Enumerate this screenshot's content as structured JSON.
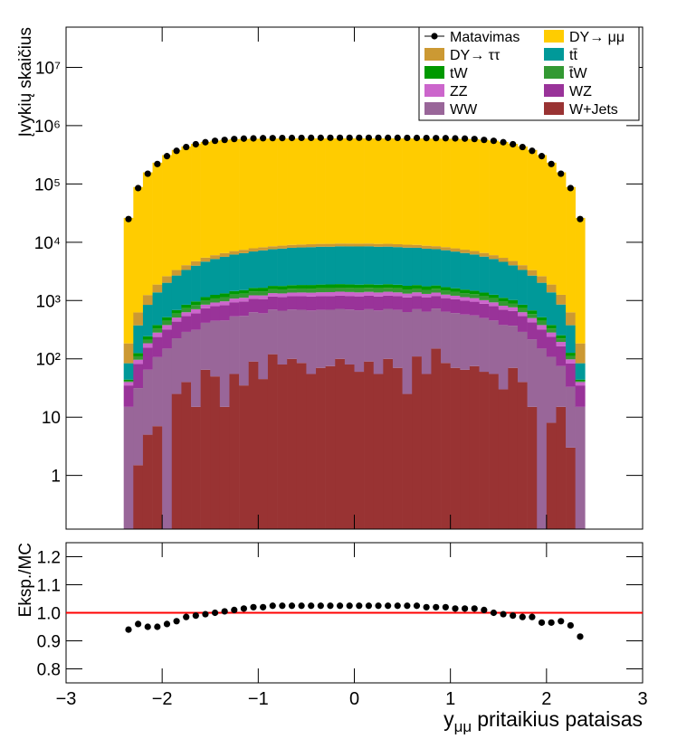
{
  "chart_data": [
    {
      "type": "stacked-histogram",
      "ylabel": "Įvykių skaičius",
      "log_scale": true,
      "legend_position": "top-right",
      "xlim": [
        -3,
        3
      ],
      "ylim": [
        0.12,
        49000000
      ],
      "yticks": [
        1,
        10,
        {
          "value": 100,
          "label": "10²"
        },
        {
          "value": 1000,
          "label": "10³"
        },
        {
          "value": 10000,
          "label": "10⁴"
        },
        {
          "value": 100000,
          "label": "10⁵"
        },
        {
          "value": 1000000,
          "label": "10⁶"
        },
        {
          "value": 10000000,
          "label": "10⁷"
        }
      ],
      "bins": [
        -2.4,
        -2.3,
        -2.2,
        -2.1,
        -2,
        -1.9,
        -1.8,
        -1.7,
        -1.6,
        -1.5,
        -1.4,
        -1.3,
        -1.2,
        -1.1,
        -1,
        -0.9,
        -0.8,
        -0.7,
        -0.6,
        -0.5,
        -0.4,
        -0.3,
        -0.2,
        -0.1,
        0,
        0.1,
        0.2,
        0.3,
        0.4,
        0.5,
        0.6,
        0.7,
        0.8,
        0.9,
        1,
        1.1,
        1.2,
        1.3,
        1.4,
        1.5,
        1.6,
        1.7,
        1.8,
        1.9,
        2,
        2.1,
        2.2,
        2.3,
        2.4
      ],
      "data": {
        "name": "Matavimas",
        "color": "#000000",
        "values": [
          25000,
          85000,
          150000,
          220000,
          300000,
          370000,
          430000,
          480000,
          520000,
          550000,
          570000,
          590000,
          600000,
          605000,
          610000,
          612000,
          614000,
          616000,
          617000,
          618000,
          619000,
          620000,
          620000,
          620000,
          620000,
          620000,
          620000,
          619000,
          618000,
          617000,
          616000,
          614000,
          612000,
          610000,
          605000,
          600000,
          590000,
          570000,
          550000,
          520000,
          480000,
          430000,
          370000,
          300000,
          220000,
          150000,
          85000,
          25000
        ]
      },
      "series": [
        {
          "name": "DY→ μμ",
          "color": "#ffcc00",
          "values": [
            26000,
            88000,
            157000,
            230000,
            310000,
            380000,
            435000,
            482000,
            520000,
            547000,
            563000,
            580000,
            585000,
            588000,
            590000,
            592000,
            593000,
            594000,
            595000,
            595000,
            596000,
            596000,
            596000,
            596000,
            596000,
            596000,
            596000,
            596000,
            595000,
            595000,
            594000,
            593000,
            592000,
            590000,
            588000,
            585000,
            580000,
            563000,
            547000,
            520000,
            482000,
            435000,
            380000,
            310000,
            230000,
            157000,
            88000,
            26000
          ]
        },
        {
          "name": "DY→ ττ",
          "color": "#cc9933",
          "values": [
            100,
            250,
            400,
            500,
            600,
            650,
            700,
            750,
            800,
            850,
            880,
            900,
            920,
            940,
            950,
            960,
            970,
            980,
            990,
            1000,
            1000,
            1000,
            1000,
            1000,
            1000,
            1000,
            1000,
            1000,
            1000,
            990,
            980,
            970,
            960,
            950,
            940,
            920,
            900,
            880,
            850,
            800,
            750,
            700,
            650,
            600,
            500,
            400,
            250,
            100
          ]
        },
        {
          "name": "tt̄",
          "color": "#009999",
          "values": [
            40,
            250,
            600,
            1000,
            1500,
            2000,
            2500,
            3000,
            3500,
            3900,
            4300,
            4700,
            5000,
            5300,
            5600,
            5800,
            6000,
            6200,
            6300,
            6400,
            6500,
            6500,
            6600,
            6600,
            6600,
            6600,
            6500,
            6500,
            6400,
            6300,
            6200,
            6000,
            5800,
            5600,
            5300,
            5000,
            4700,
            4300,
            3900,
            3500,
            3000,
            2500,
            2000,
            1500,
            1000,
            600,
            250,
            40
          ]
        },
        {
          "name": "tW",
          "color": "#009900",
          "values": [
            2,
            15,
            30,
            50,
            70,
            90,
            110,
            130,
            150,
            165,
            180,
            190,
            200,
            210,
            220,
            225,
            230,
            235,
            240,
            245,
            250,
            250,
            250,
            250,
            250,
            250,
            250,
            250,
            245,
            240,
            235,
            230,
            225,
            220,
            210,
            200,
            190,
            180,
            165,
            150,
            130,
            110,
            90,
            70,
            50,
            30,
            15,
            2
          ]
        },
        {
          "name": "t̄W",
          "color": "#339933",
          "values": [
            2,
            14,
            29,
            48,
            68,
            88,
            108,
            127,
            147,
            162,
            176,
            186,
            196,
            206,
            215,
            220,
            225,
            230,
            235,
            240,
            245,
            245,
            245,
            245,
            245,
            245,
            245,
            245,
            240,
            235,
            230,
            225,
            220,
            215,
            206,
            196,
            186,
            176,
            162,
            147,
            127,
            108,
            88,
            68,
            48,
            29,
            14,
            2
          ]
        },
        {
          "name": "ZZ",
          "color": "#cc66cc",
          "values": [
            5,
            15,
            30,
            45,
            60,
            75,
            90,
            105,
            115,
            125,
            135,
            145,
            150,
            160,
            165,
            170,
            175,
            180,
            185,
            190,
            195,
            200,
            200,
            200,
            200,
            200,
            200,
            195,
            190,
            185,
            180,
            175,
            170,
            165,
            160,
            150,
            145,
            135,
            125,
            115,
            105,
            90,
            75,
            60,
            45,
            30,
            15,
            5
          ]
        },
        {
          "name": "WZ",
          "color": "#993399",
          "values": [
            20,
            50,
            90,
            130,
            170,
            210,
            250,
            290,
            320,
            350,
            380,
            400,
            420,
            440,
            455,
            470,
            480,
            490,
            495,
            500,
            500,
            500,
            500,
            500,
            500,
            500,
            500,
            500,
            500,
            495,
            490,
            480,
            470,
            455,
            440,
            420,
            400,
            380,
            350,
            320,
            290,
            250,
            210,
            170,
            130,
            90,
            50,
            20
          ]
        },
        {
          "name": "WW",
          "color": "#996699",
          "values": [
            15,
            30,
            60,
            100,
            150,
            200,
            250,
            300,
            350,
            400,
            440,
            480,
            510,
            540,
            560,
            580,
            590,
            600,
            610,
            620,
            620,
            620,
            620,
            620,
            620,
            620,
            620,
            620,
            620,
            610,
            600,
            590,
            580,
            560,
            540,
            510,
            480,
            440,
            400,
            350,
            300,
            250,
            200,
            150,
            100,
            60,
            30,
            15
          ]
        },
        {
          "name": "W+Jets",
          "color": "#993333",
          "values": [
            0,
            1.5,
            5,
            7,
            0,
            25,
            40,
            15,
            65,
            50,
            15,
            55,
            35,
            90,
            45,
            120,
            80,
            100,
            85,
            55,
            70,
            75,
            100,
            80,
            60,
            90,
            55,
            100,
            70,
            25,
            110,
            55,
            150,
            85,
            70,
            65,
            75,
            60,
            55,
            30,
            70,
            40,
            15,
            0,
            8,
            15,
            3,
            0
          ]
        }
      ]
    },
    {
      "type": "scatter",
      "ylabel": "Eksp./MC",
      "xlabel": {
        "symbol": "y",
        "subscript": "μμ",
        "text": "pritaikius pataisas"
      },
      "xlim": [
        -3,
        3
      ],
      "xticks": [
        {
          "value": -3,
          "label": "−3"
        },
        {
          "value": -2,
          "label": "−2"
        },
        {
          "value": -1,
          "label": "−1"
        },
        0,
        1,
        2,
        3
      ],
      "ylim": [
        0.75,
        1.25
      ],
      "yticks": [
        0.8,
        0.9,
        {
          "value": 1,
          "label": "1.0"
        },
        1.1,
        1.2
      ],
      "reference_line": 1,
      "reference_color": "#ff0000",
      "color": "#000000",
      "x": [
        -2.35,
        -2.25,
        -2.15,
        -2.05,
        -1.95,
        -1.85,
        -1.75,
        -1.65,
        -1.55,
        -1.45,
        -1.35,
        -1.25,
        -1.15,
        -1.05,
        -0.95,
        -0.85,
        -0.75,
        -0.65,
        -0.55,
        -0.45,
        -0.35,
        -0.25,
        -0.15,
        -0.05,
        0.05,
        0.15,
        0.25,
        0.35,
        0.45,
        0.55,
        0.65,
        0.75,
        0.85,
        0.95,
        1.05,
        1.15,
        1.25,
        1.35,
        1.45,
        1.55,
        1.65,
        1.75,
        1.85,
        1.95,
        2.05,
        2.15,
        2.25,
        2.35
      ],
      "values": [
        0.94,
        0.96,
        0.95,
        0.95,
        0.96,
        0.97,
        0.985,
        0.99,
        0.995,
        1.0,
        1.005,
        1.01,
        1.015,
        1.02,
        1.02,
        1.025,
        1.025,
        1.025,
        1.025,
        1.025,
        1.025,
        1.025,
        1.025,
        1.025,
        1.025,
        1.025,
        1.025,
        1.025,
        1.025,
        1.025,
        1.025,
        1.02,
        1.02,
        1.02,
        1.015,
        1.015,
        1.015,
        1.01,
        1.0,
        0.995,
        0.99,
        0.985,
        0.985,
        0.965,
        0.965,
        0.97,
        0.955,
        0.915
      ]
    }
  ]
}
